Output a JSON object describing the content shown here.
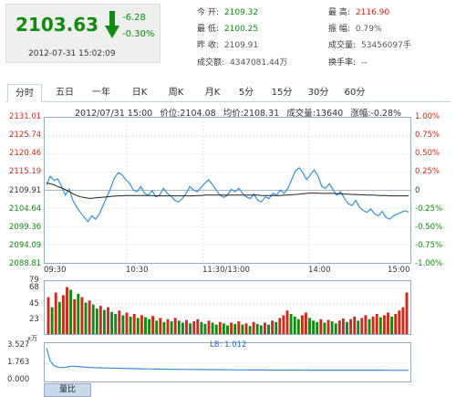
{
  "quote": {
    "price": "2103.63",
    "change": "-6.28",
    "change_pct": "-0.30%",
    "timestamp": "2012-07-31 15:02:09"
  },
  "stats": [
    {
      "label": "今 开:",
      "value": "2109.32",
      "tone": "green"
    },
    {
      "label": "最 高:",
      "value": "2116.90",
      "tone": "red"
    },
    {
      "label": "最 低:",
      "value": "2100.25",
      "tone": "green"
    },
    {
      "label": "振 幅:",
      "value": "0.79%",
      "tone": "normal"
    },
    {
      "label": "昨 收:",
      "value": "2109.91",
      "tone": "normal"
    },
    {
      "label": "成交量:",
      "value": "53456097手",
      "tone": "normal"
    },
    {
      "label": "成交额:",
      "value": "4347081.44万",
      "tone": "normal"
    },
    {
      "label": "换手率:",
      "value": "--",
      "tone": "normal"
    }
  ],
  "tabs": [
    "分时",
    "五日",
    "一年",
    "日K",
    "周K",
    "月K",
    "5分",
    "15分",
    "30分",
    "60分"
  ],
  "active_tab": "分时",
  "info_bar": {
    "datetime": "2012/07/31 15:00",
    "price": "价位:2104.08",
    "avg": "均价:2108.31",
    "vol": "成交量:13640",
    "chg": "涨幅:-0.28%"
  },
  "colors": {
    "up": "#d0281a",
    "down": "#108a10",
    "price_line": "#3a8fd6",
    "avg_line": "#222222",
    "volume_up": "#d0281a",
    "volume_down": "#108a10"
  },
  "chart_data": [
    {
      "type": "line",
      "title": "",
      "x_ticks": [
        "09:30",
        "10:30",
        "11:30/13:00",
        "14:00",
        "15:00"
      ],
      "y_ticks_price": [
        "2131.01",
        "2125.74",
        "2120.46",
        "2115.19",
        "2109.91",
        "2104.64",
        "2099.36",
        "2094.09",
        "2088.81"
      ],
      "y_ticks_pct": [
        "1.00%",
        "0.75%",
        "0.50%",
        "0.25%",
        "0",
        "-0.25%",
        "-0.50%",
        "-0.75%",
        "-1.00%"
      ],
      "ylim": [
        2088.81,
        2131.01
      ],
      "reference": 2109.91,
      "series": [
        {
          "values": [
            2111.5,
            2114.0,
            2112.8,
            2113.2,
            2111.0,
            2108.5,
            2110.3,
            2107.0,
            2105.0,
            2103.5,
            2102.0,
            2100.8,
            2102.5,
            2101.5,
            2103.0,
            2105.5,
            2108.0,
            2110.5,
            2113.5,
            2115.0,
            2114.5,
            2113.0,
            2112.0,
            2110.0,
            2109.5,
            2111.0,
            2109.0,
            2108.5,
            2109.8,
            2108.0,
            2108.5,
            2110.5,
            2109.0,
            2108.2,
            2107.0,
            2106.5,
            2107.5,
            2109.0,
            2111.0,
            2110.0,
            2109.5,
            2110.8,
            2112.0,
            2113.0,
            2111.5,
            2110.0,
            2108.5,
            2107.8,
            2108.5,
            2110.2,
            2109.5,
            2110.5,
            2109.0,
            2108.0,
            2107.5,
            2108.8,
            2107.0,
            2106.5,
            2108.0,
            2107.5,
            2109.0,
            2108.5,
            2110.0,
            2109.0,
            2110.5,
            2113.0,
            2115.5,
            2116.5,
            2115.0,
            2113.0,
            2114.5,
            2115.8,
            2114.0,
            2111.0,
            2110.5,
            2111.8,
            2110.0,
            2108.5,
            2109.5,
            2107.5,
            2106.0,
            2105.5,
            2107.0,
            2105.0,
            2104.0,
            2103.5,
            2104.5,
            2103.0,
            2102.5,
            2103.8,
            2102.0,
            2101.5,
            2102.5,
            2103.0,
            2103.5,
            2104.0,
            2103.6
          ]
        },
        {
          "values": [
            2112.0,
            2111.8,
            2111.5,
            2111.0,
            2110.6,
            2110.1,
            2109.5,
            2108.9,
            2108.4,
            2108.0,
            2107.8,
            2107.6,
            2107.6,
            2107.7,
            2107.8,
            2107.9,
            2108.0,
            2108.1,
            2108.2,
            2108.3,
            2108.3,
            2108.4,
            2108.4,
            2108.4,
            2108.4,
            2108.4,
            2108.4,
            2108.4,
            2108.4,
            2108.3,
            2108.3,
            2108.3,
            2108.3,
            2108.3,
            2108.3,
            2108.3,
            2108.3,
            2108.3,
            2108.3,
            2108.3,
            2108.4,
            2108.4,
            2108.5,
            2108.5,
            2108.5,
            2108.5,
            2108.5,
            2108.5,
            2108.5,
            2108.5,
            2108.5,
            2108.5,
            2108.5,
            2108.5,
            2108.5,
            2108.5,
            2108.5,
            2108.4,
            2108.4,
            2108.4,
            2108.4,
            2108.4,
            2108.4,
            2108.5,
            2108.5,
            2108.6,
            2108.7,
            2108.8,
            2108.9,
            2109.0,
            2109.1,
            2109.1,
            2109.1,
            2109.0,
            2109.0,
            2109.0,
            2109.0,
            2108.9,
            2108.9,
            2108.8,
            2108.8,
            2108.7,
            2108.7,
            2108.6,
            2108.6,
            2108.5,
            2108.5,
            2108.5,
            2108.4,
            2108.4,
            2108.4,
            2108.3,
            2108.3,
            2108.3,
            2108.3,
            2108.3,
            2108.3
          ]
        }
      ]
    },
    {
      "type": "bar",
      "y_ticks": [
        "79",
        "68",
        "45",
        "23"
      ],
      "ylim": [
        0,
        79
      ],
      "values": [
        55,
        40,
        62,
        48,
        58,
        70,
        66,
        52,
        60,
        55,
        47,
        50,
        44,
        38,
        42,
        36,
        40,
        33,
        30,
        35,
        28,
        32,
        26,
        30,
        24,
        28,
        25,
        22,
        27,
        20,
        24,
        18,
        22,
        19,
        24,
        20,
        17,
        21,
        16,
        19,
        22,
        18,
        15,
        20,
        17,
        14,
        18,
        16,
        13,
        17,
        15,
        19,
        14,
        16,
        12,
        18,
        15,
        13,
        17,
        14,
        20,
        18,
        24,
        28,
        35,
        30,
        26,
        22,
        28,
        32,
        24,
        20,
        18,
        22,
        17,
        21,
        19,
        16,
        20,
        23,
        18,
        22,
        26,
        20,
        24,
        28,
        22,
        26,
        30,
        25,
        28,
        32,
        26,
        30,
        35,
        40,
        62
      ],
      "up": [
        1,
        0,
        1,
        0,
        1,
        1,
        0,
        1,
        0,
        1,
        0,
        1,
        0,
        0,
        1,
        0,
        1,
        0,
        0,
        1,
        0,
        1,
        0,
        1,
        0,
        1,
        0,
        0,
        1,
        0,
        1,
        0,
        1,
        0,
        1,
        0,
        0,
        1,
        0,
        1,
        1,
        0,
        0,
        1,
        0,
        0,
        1,
        0,
        0,
        1,
        0,
        1,
        0,
        1,
        0,
        1,
        0,
        0,
        1,
        0,
        1,
        0,
        1,
        1,
        1,
        0,
        0,
        0,
        1,
        1,
        0,
        0,
        0,
        1,
        0,
        1,
        0,
        0,
        1,
        1,
        0,
        1,
        1,
        0,
        1,
        1,
        0,
        1,
        1,
        0,
        1,
        1,
        0,
        1,
        1,
        1,
        1
      ]
    },
    {
      "type": "line",
      "y_ticks": [
        "3.527",
        "1.763",
        "0.000"
      ],
      "unit": "x万",
      "label": "LB: 1.012",
      "ylim": [
        0,
        3.527
      ],
      "values": [
        3.4,
        2.0,
        1.5,
        1.35,
        1.3,
        1.32,
        1.4,
        1.45,
        1.42,
        1.38,
        1.35,
        1.32,
        1.3,
        1.28,
        1.27,
        1.26,
        1.25,
        1.24,
        1.23,
        1.22,
        1.21,
        1.2,
        1.19,
        1.19,
        1.18,
        1.17,
        1.16,
        1.16,
        1.15,
        1.14,
        1.14,
        1.13,
        1.13,
        1.12,
        1.12,
        1.11,
        1.11,
        1.1,
        1.1,
        1.1,
        1.09,
        1.09,
        1.08,
        1.08,
        1.08,
        1.07,
        1.07,
        1.07,
        1.06,
        1.06,
        1.06,
        1.05,
        1.05,
        1.05,
        1.05,
        1.04,
        1.04,
        1.04,
        1.04,
        1.03,
        1.03,
        1.03,
        1.03,
        1.03,
        1.03,
        1.03,
        1.03,
        1.03,
        1.03,
        1.03,
        1.02,
        1.02,
        1.02,
        1.02,
        1.02,
        1.02,
        1.02,
        1.02,
        1.02,
        1.02,
        1.02,
        1.02,
        1.02,
        1.02,
        1.02,
        1.02,
        1.02,
        1.02,
        1.02,
        1.02,
        1.01,
        1.01,
        1.01,
        1.01,
        1.01,
        1.01,
        1.012
      ]
    }
  ],
  "bottom_tab": "量比"
}
